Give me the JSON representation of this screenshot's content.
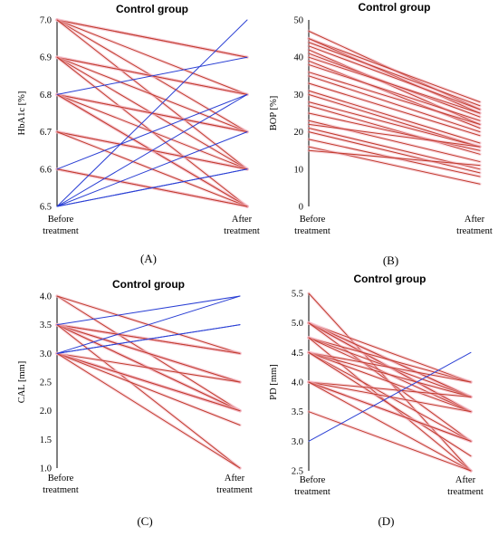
{
  "chart_data": [
    {
      "type": "line",
      "title": "Control group",
      "panel_label": "(A)",
      "categories": [
        "Before treatment",
        "After treatment"
      ],
      "ylabel": "HbA1c [%]",
      "ylim": [
        6.5,
        7.0
      ],
      "yticks": [
        "6.5",
        "6.6",
        "6.7",
        "6.8",
        "6.9",
        "7.0"
      ],
      "grid": false,
      "series": [
        {
          "values": [
            7.0,
            6.9
          ],
          "color": "#c0392b"
        },
        {
          "values": [
            7.0,
            6.9
          ],
          "color": "#c0392b"
        },
        {
          "values": [
            7.0,
            6.8
          ],
          "color": "#c0392b"
        },
        {
          "values": [
            7.0,
            6.7
          ],
          "color": "#c0392b"
        },
        {
          "values": [
            7.0,
            6.6
          ],
          "color": "#c0392b"
        },
        {
          "values": [
            6.9,
            6.8
          ],
          "color": "#c0392b"
        },
        {
          "values": [
            6.9,
            6.8
          ],
          "color": "#c0392b"
        },
        {
          "values": [
            6.9,
            6.7
          ],
          "color": "#c0392b"
        },
        {
          "values": [
            6.9,
            6.6
          ],
          "color": "#c0392b"
        },
        {
          "values": [
            6.9,
            6.5
          ],
          "color": "#c0392b"
        },
        {
          "values": [
            6.8,
            6.7
          ],
          "color": "#c0392b"
        },
        {
          "values": [
            6.8,
            6.7
          ],
          "color": "#c0392b"
        },
        {
          "values": [
            6.8,
            6.6
          ],
          "color": "#c0392b"
        },
        {
          "values": [
            6.8,
            6.5
          ],
          "color": "#c0392b"
        },
        {
          "values": [
            6.8,
            6.5
          ],
          "color": "#c0392b"
        },
        {
          "values": [
            6.7,
            6.6
          ],
          "color": "#c0392b"
        },
        {
          "values": [
            6.7,
            6.6
          ],
          "color": "#c0392b"
        },
        {
          "values": [
            6.7,
            6.5
          ],
          "color": "#c0392b"
        },
        {
          "values": [
            6.6,
            6.5
          ],
          "color": "#c0392b"
        },
        {
          "values": [
            6.6,
            6.5
          ],
          "color": "#c0392b"
        },
        {
          "values": [
            6.8,
            6.9
          ],
          "color": "#2a3fd4"
        },
        {
          "values": [
            6.6,
            6.8
          ],
          "color": "#2a3fd4"
        },
        {
          "values": [
            6.5,
            7.0
          ],
          "color": "#2a3fd4"
        },
        {
          "values": [
            6.5,
            6.8
          ],
          "color": "#2a3fd4"
        },
        {
          "values": [
            6.5,
            6.7
          ],
          "color": "#2a3fd4"
        },
        {
          "values": [
            6.5,
            6.6
          ],
          "color": "#2a3fd4"
        },
        {
          "values": [
            6.5,
            6.6
          ],
          "color": "#2a3fd4"
        }
      ]
    },
    {
      "type": "line",
      "title": "Control group",
      "panel_label": "(B)",
      "categories": [
        "Before treatment",
        "After treatment"
      ],
      "ylabel": "BOP [%]",
      "ylim": [
        0,
        50
      ],
      "yticks": [
        "0",
        "10",
        "20",
        "30",
        "40",
        "50"
      ],
      "grid": false,
      "series": [
        {
          "values": [
            47,
            26
          ],
          "color": "#c0392b"
        },
        {
          "values": [
            45,
            28
          ],
          "color": "#c0392b"
        },
        {
          "values": [
            45,
            25
          ],
          "color": "#c0392b"
        },
        {
          "values": [
            44,
            27
          ],
          "color": "#c0392b"
        },
        {
          "values": [
            43,
            26
          ],
          "color": "#c0392b"
        },
        {
          "values": [
            42,
            22
          ],
          "color": "#c0392b"
        },
        {
          "values": [
            41,
            24
          ],
          "color": "#c0392b"
        },
        {
          "values": [
            40,
            25
          ],
          "color": "#c0392b"
        },
        {
          "values": [
            39,
            21
          ],
          "color": "#c0392b"
        },
        {
          "values": [
            38,
            23
          ],
          "color": "#c0392b"
        },
        {
          "values": [
            36,
            22
          ],
          "color": "#c0392b"
        },
        {
          "values": [
            35,
            20
          ],
          "color": "#c0392b"
        },
        {
          "values": [
            33,
            19
          ],
          "color": "#c0392b"
        },
        {
          "values": [
            31,
            17
          ],
          "color": "#c0392b"
        },
        {
          "values": [
            30,
            16
          ],
          "color": "#c0392b"
        },
        {
          "values": [
            28,
            16
          ],
          "color": "#c0392b"
        },
        {
          "values": [
            27,
            14
          ],
          "color": "#c0392b"
        },
        {
          "values": [
            25,
            15
          ],
          "color": "#c0392b"
        },
        {
          "values": [
            23,
            12
          ],
          "color": "#c0392b"
        },
        {
          "values": [
            22,
            16
          ],
          "color": "#c0392b"
        },
        {
          "values": [
            21,
            10
          ],
          "color": "#c0392b"
        },
        {
          "values": [
            20,
            9
          ],
          "color": "#c0392b"
        },
        {
          "values": [
            18,
            8
          ],
          "color": "#c0392b"
        },
        {
          "values": [
            16,
            6
          ],
          "color": "#c0392b"
        },
        {
          "values": [
            15,
            11
          ],
          "color": "#c0392b"
        }
      ]
    },
    {
      "type": "line",
      "title": "Control group",
      "panel_label": "(C)",
      "categories": [
        "Before treatment",
        "After treatment"
      ],
      "ylabel": "CAL [mm]",
      "ylim": [
        1.0,
        4.0
      ],
      "yticks": [
        "1.0",
        "1.5",
        "2.0",
        "2.5",
        "3.0",
        "3.5",
        "4.0"
      ],
      "grid": false,
      "series": [
        {
          "values": [
            4.0,
            2.0
          ],
          "color": "#c0392b"
        },
        {
          "values": [
            4.0,
            3.0
          ],
          "color": "#c0392b"
        },
        {
          "values": [
            3.5,
            3.0
          ],
          "color": "#c0392b"
        },
        {
          "values": [
            3.5,
            3.0
          ],
          "color": "#c0392b"
        },
        {
          "values": [
            3.5,
            2.5
          ],
          "color": "#c0392b"
        },
        {
          "values": [
            3.5,
            2.5
          ],
          "color": "#c0392b"
        },
        {
          "values": [
            3.5,
            2.0
          ],
          "color": "#c0392b"
        },
        {
          "values": [
            3.5,
            2.0
          ],
          "color": "#c0392b"
        },
        {
          "values": [
            3.5,
            1.0
          ],
          "color": "#c0392b"
        },
        {
          "values": [
            3.0,
            2.5
          ],
          "color": "#c0392b"
        },
        {
          "values": [
            3.0,
            2.0
          ],
          "color": "#c0392b"
        },
        {
          "values": [
            3.0,
            2.0
          ],
          "color": "#c0392b"
        },
        {
          "values": [
            3.0,
            2.0
          ],
          "color": "#c0392b"
        },
        {
          "values": [
            3.0,
            1.75
          ],
          "color": "#c0392b"
        },
        {
          "values": [
            3.0,
            1.0
          ],
          "color": "#c0392b"
        },
        {
          "values": [
            3.5,
            4.0
          ],
          "color": "#2a3fd4"
        },
        {
          "values": [
            3.0,
            4.0
          ],
          "color": "#2a3fd4"
        },
        {
          "values": [
            3.0,
            3.5
          ],
          "color": "#2a3fd4"
        },
        {
          "values": [
            3.0,
            3.5
          ],
          "color": "#2a3fd4"
        }
      ]
    },
    {
      "type": "line",
      "title": "Control group",
      "panel_label": "(D)",
      "categories": [
        "Before treatment",
        "After treatment"
      ],
      "ylabel": "PD [mm]",
      "ylim": [
        2.5,
        5.5
      ],
      "yticks": [
        "2.5",
        "3.0",
        "3.5",
        "4.0",
        "4.5",
        "5.0",
        "5.5"
      ],
      "grid": false,
      "series": [
        {
          "values": [
            5.5,
            2.5
          ],
          "color": "#c0392b"
        },
        {
          "values": [
            5.0,
            4.0
          ],
          "color": "#c0392b"
        },
        {
          "values": [
            5.0,
            3.75
          ],
          "color": "#c0392b"
        },
        {
          "values": [
            5.0,
            3.75
          ],
          "color": "#c0392b"
        },
        {
          "values": [
            5.0,
            3.5
          ],
          "color": "#c0392b"
        },
        {
          "values": [
            5.0,
            3.5
          ],
          "color": "#c0392b"
        },
        {
          "values": [
            5.0,
            3.0
          ],
          "color": "#c0392b"
        },
        {
          "values": [
            4.75,
            4.0
          ],
          "color": "#c0392b"
        },
        {
          "values": [
            4.75,
            3.75
          ],
          "color": "#c0392b"
        },
        {
          "values": [
            4.75,
            3.5
          ],
          "color": "#c0392b"
        },
        {
          "values": [
            4.75,
            2.5
          ],
          "color": "#c0392b"
        },
        {
          "values": [
            4.5,
            4.0
          ],
          "color": "#c0392b"
        },
        {
          "values": [
            4.5,
            3.75
          ],
          "color": "#c0392b"
        },
        {
          "values": [
            4.5,
            3.5
          ],
          "color": "#c0392b"
        },
        {
          "values": [
            4.5,
            3.0
          ],
          "color": "#c0392b"
        },
        {
          "values": [
            4.5,
            2.75
          ],
          "color": "#c0392b"
        },
        {
          "values": [
            4.0,
            3.75
          ],
          "color": "#c0392b"
        },
        {
          "values": [
            4.0,
            3.5
          ],
          "color": "#c0392b"
        },
        {
          "values": [
            4.0,
            3.0
          ],
          "color": "#c0392b"
        },
        {
          "values": [
            4.0,
            3.0
          ],
          "color": "#c0392b"
        },
        {
          "values": [
            4.0,
            2.5
          ],
          "color": "#c0392b"
        },
        {
          "values": [
            3.5,
            2.5
          ],
          "color": "#c0392b"
        },
        {
          "values": [
            3.0,
            4.5
          ],
          "color": "#2a3fd4"
        }
      ]
    }
  ]
}
